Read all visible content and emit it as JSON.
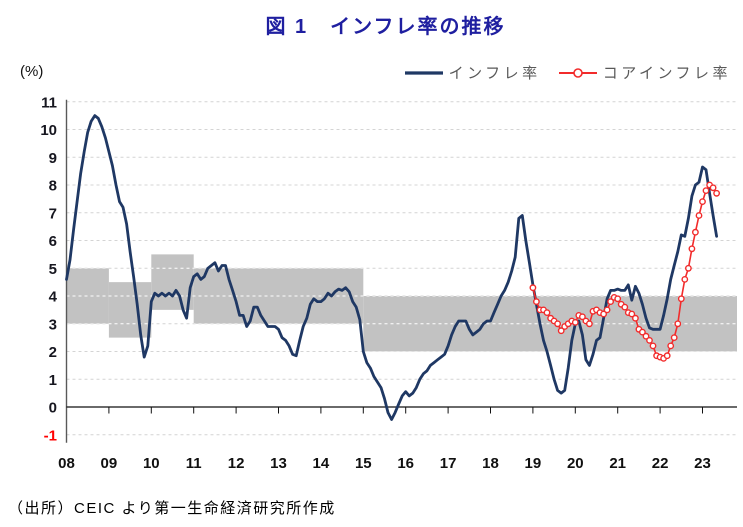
{
  "title": "図 1　インフレ率の推移",
  "y_axis_unit_label": "(%)",
  "source_note": "（出所）CEIC より第一生命経済研究所作成",
  "legend": [
    {
      "label": "インフレ率",
      "color": "#1f3864",
      "marker": "line"
    },
    {
      "label": "コアインフレ率",
      "color": "#f22b2b",
      "marker": "line-circle"
    }
  ],
  "chart_data": {
    "type": "line",
    "title": "図 1　インフレ率の推移",
    "ylabel": "(%)",
    "ylim": [
      -1,
      11
    ],
    "y_ticks": [
      -1,
      0,
      1,
      2,
      3,
      4,
      5,
      6,
      7,
      8,
      9,
      10,
      11
    ],
    "x_tick_labels": [
      "08",
      "09",
      "10",
      "11",
      "12",
      "13",
      "14",
      "15",
      "16",
      "17",
      "18",
      "19",
      "20",
      "21",
      "22",
      "23"
    ],
    "x_range_years": [
      2008,
      2023.83
    ],
    "grid": "dashed-horizontal",
    "legend_position": "top-right",
    "band_color": "#c2c2c2",
    "target_bands": [
      {
        "from_year": 2008,
        "to_year": 2009,
        "low": 3.0,
        "high": 5.0
      },
      {
        "from_year": 2009,
        "to_year": 2010,
        "low": 2.5,
        "high": 4.5
      },
      {
        "from_year": 2010,
        "to_year": 2011,
        "low": 3.5,
        "high": 5.5
      },
      {
        "from_year": 2011,
        "to_year": 2015,
        "low": 3.0,
        "high": 5.0
      },
      {
        "from_year": 2015,
        "to_year": 2024,
        "low": 2.0,
        "high": 4.0
      }
    ],
    "series": [
      {
        "id": "inflation",
        "name": "インフレ率",
        "color": "#1f3864",
        "width": 2.8,
        "marker": "none",
        "start_year": 2008,
        "frequency": "monthly",
        "values": [
          4.6,
          5.3,
          6.4,
          7.4,
          8.4,
          9.2,
          9.9,
          10.3,
          10.5,
          10.4,
          10.1,
          9.7,
          9.2,
          8.7,
          8.0,
          7.4,
          7.2,
          6.6,
          5.6,
          4.7,
          3.7,
          2.6,
          1.8,
          2.2,
          3.8,
          4.1,
          4.0,
          4.1,
          4.0,
          4.1,
          4.0,
          4.2,
          4.0,
          3.5,
          3.2,
          4.3,
          4.7,
          4.8,
          4.6,
          4.7,
          5.0,
          5.1,
          5.2,
          4.9,
          5.1,
          5.1,
          4.6,
          4.2,
          3.8,
          3.3,
          3.3,
          2.9,
          3.1,
          3.6,
          3.6,
          3.3,
          3.1,
          2.9,
          2.9,
          2.9,
          2.8,
          2.5,
          2.4,
          2.2,
          1.9,
          1.85,
          2.4,
          2.9,
          3.2,
          3.7,
          3.9,
          3.8,
          3.8,
          3.9,
          4.1,
          4.0,
          4.15,
          4.25,
          4.2,
          4.3,
          4.15,
          3.8,
          3.6,
          3.15,
          2.0,
          1.6,
          1.4,
          1.1,
          0.9,
          0.7,
          0.3,
          -0.2,
          -0.45,
          -0.2,
          0.1,
          0.4,
          0.55,
          0.4,
          0.5,
          0.7,
          1.0,
          1.2,
          1.3,
          1.5,
          1.6,
          1.7,
          1.8,
          1.9,
          2.2,
          2.6,
          2.9,
          3.1,
          3.1,
          3.1,
          2.8,
          2.6,
          2.7,
          2.8,
          3.0,
          3.1,
          3.1,
          3.4,
          3.7,
          4.0,
          4.2,
          4.5,
          4.9,
          5.4,
          6.8,
          6.9,
          6.0,
          5.2,
          4.4,
          3.7,
          3.0,
          2.4,
          2.0,
          1.5,
          1.0,
          0.6,
          0.5,
          0.6,
          1.4,
          2.4,
          3.0,
          3.1,
          2.6,
          1.7,
          1.5,
          1.9,
          2.4,
          2.5,
          3.2,
          3.9,
          4.2,
          4.2,
          4.25,
          4.2,
          4.2,
          4.4,
          3.85,
          4.35,
          4.1,
          3.7,
          3.2,
          2.85,
          2.8,
          2.8,
          2.8,
          3.3,
          3.9,
          4.6,
          5.1,
          5.6,
          6.2,
          6.15,
          6.8,
          7.6,
          8.0,
          8.1,
          8.65,
          8.55,
          7.7,
          6.9,
          6.15
        ]
      },
      {
        "id": "core-inflation",
        "name": "コアインフレ率",
        "color": "#f22b2b",
        "width": 1.6,
        "marker": "circle",
        "start_year": 2019,
        "frequency": "monthly",
        "values": [
          4.3,
          3.8,
          3.5,
          3.5,
          3.4,
          3.2,
          3.1,
          3.0,
          2.75,
          2.9,
          3.0,
          3.1,
          3.05,
          3.3,
          3.25,
          3.1,
          3.0,
          3.45,
          3.5,
          3.4,
          3.35,
          3.5,
          3.8,
          3.95,
          3.9,
          3.7,
          3.6,
          3.4,
          3.35,
          3.2,
          2.8,
          2.7,
          2.55,
          2.4,
          2.2,
          1.85,
          1.8,
          1.75,
          1.85,
          2.2,
          2.5,
          3.0,
          3.9,
          4.6,
          5.0,
          5.7,
          6.3,
          6.9,
          7.4,
          7.8,
          8.0,
          7.9,
          7.7
        ]
      }
    ]
  }
}
